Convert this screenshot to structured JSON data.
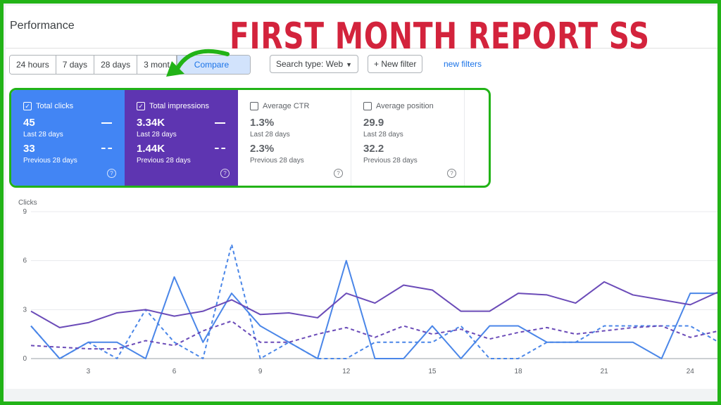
{
  "header": {
    "title": "Performance",
    "overlay": "FIRST MONTH REPORT SS"
  },
  "toolbar": {
    "ranges": [
      "24 hours",
      "7 days",
      "28 days",
      "3 mont"
    ],
    "compare": "Compare",
    "search_type": "Search type: Web",
    "date_filter": "+ New filter",
    "new_link": "new filters"
  },
  "cards": [
    {
      "label": "Total clicks",
      "checked": true,
      "value": "45",
      "period": "Last 28 days",
      "prev_value": "33",
      "prev_period": "Previous 28 days"
    },
    {
      "label": "Total impressions",
      "checked": true,
      "value": "3.34K",
      "period": "Last 28 days",
      "prev_value": "1.44K",
      "prev_period": "Previous 28 days"
    },
    {
      "label": "Average CTR",
      "checked": false,
      "value": "1.3%",
      "period": "Last 28 days",
      "prev_value": "2.3%",
      "prev_period": "Previous 28 days"
    },
    {
      "label": "Average position",
      "checked": false,
      "value": "29.9",
      "period": "Last 28 days",
      "prev_value": "32.2",
      "prev_period": "Previous 28 days"
    }
  ],
  "chart_data": {
    "type": "line",
    "ylabel": "Clicks",
    "ylim": [
      0,
      9
    ],
    "yticks": [
      0,
      3,
      6,
      9
    ],
    "xlim": [
      1,
      25
    ],
    "xticks": [
      3,
      6,
      9,
      12,
      15,
      18,
      21,
      24
    ],
    "grid": true,
    "x": [
      1,
      2,
      3,
      4,
      5,
      6,
      7,
      8,
      9,
      10,
      11,
      12,
      13,
      14,
      15,
      16,
      17,
      18,
      19,
      20,
      21,
      22,
      23,
      24,
      25
    ],
    "series": [
      {
        "role": "clicks-current",
        "color": "#4a86e8",
        "dashed": false,
        "values": [
          2,
          0,
          1,
          1,
          0,
          5,
          1,
          4,
          2,
          1,
          0,
          6,
          0,
          0,
          2,
          0,
          2,
          2,
          1,
          1,
          1,
          1,
          0,
          4,
          4
        ]
      },
      {
        "role": "clicks-previous",
        "color": "#4a86e8",
        "dashed": true,
        "values": [
          2,
          0,
          1,
          0,
          3,
          1,
          0,
          7,
          0,
          1,
          0,
          0,
          1,
          1,
          1,
          2,
          0,
          0,
          1,
          1,
          2,
          2,
          2,
          2,
          1
        ]
      },
      {
        "role": "impressions-current",
        "color": "#6b4bb8",
        "dashed": false,
        "values": [
          2.9,
          1.9,
          2.2,
          2.8,
          3.0,
          2.6,
          2.9,
          3.6,
          2.7,
          2.8,
          2.5,
          4.0,
          3.4,
          4.5,
          4.2,
          2.9,
          2.9,
          4.0,
          3.9,
          3.4,
          4.7,
          3.9,
          3.6,
          3.3,
          4.1
        ]
      },
      {
        "role": "impressions-previous",
        "color": "#6b4bb8",
        "dashed": true,
        "values": [
          0.8,
          0.7,
          0.6,
          0.6,
          1.1,
          0.8,
          1.7,
          2.3,
          1.0,
          1.0,
          1.5,
          1.9,
          1.3,
          2.0,
          1.5,
          1.8,
          1.2,
          1.6,
          1.9,
          1.5,
          1.7,
          1.9,
          2.0,
          1.3,
          1.7
        ]
      }
    ]
  }
}
